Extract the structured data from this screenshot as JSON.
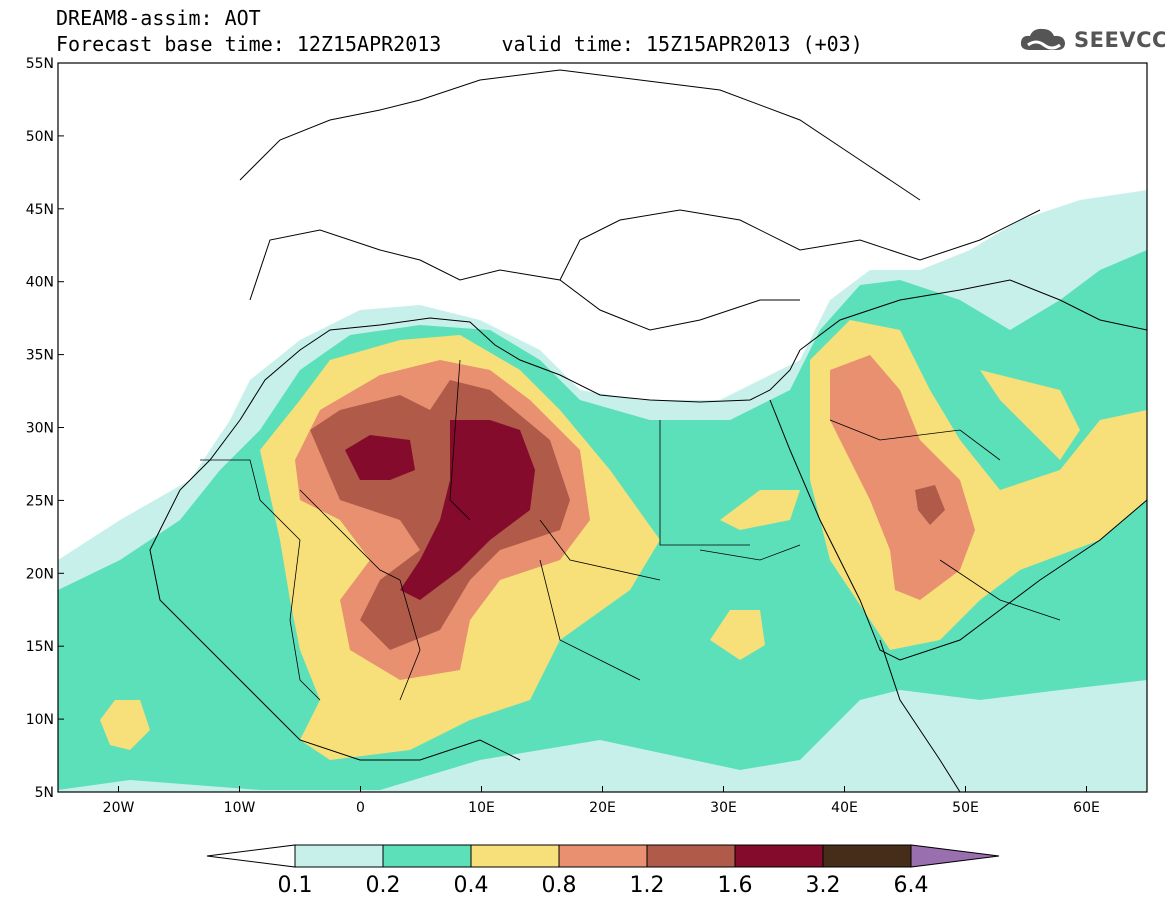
{
  "header": {
    "title": "DREAM8-assim: AOT",
    "subtitle": "Forecast base time: 12Z15APR2013     valid time: 15Z15APR2013 (+03)"
  },
  "brand": {
    "name": "SEEVCCC",
    "icon": "cloud-logo-icon"
  },
  "map": {
    "extent": {
      "lon_min": -25,
      "lon_max": 65,
      "lat_min": 5,
      "lat_max": 55
    },
    "lat_labels": [
      {
        "lat": 55,
        "label": "55N"
      },
      {
        "lat": 50,
        "label": "50N"
      },
      {
        "lat": 45,
        "label": "45N"
      },
      {
        "lat": 40,
        "label": "40N"
      },
      {
        "lat": 35,
        "label": "35N"
      },
      {
        "lat": 30,
        "label": "30N"
      },
      {
        "lat": 25,
        "label": "25N"
      },
      {
        "lat": 20,
        "label": "20N"
      },
      {
        "lat": 15,
        "label": "15N"
      },
      {
        "lat": 10,
        "label": "10N"
      },
      {
        "lat": 5,
        "label": "5N"
      }
    ],
    "lon_labels": [
      {
        "lon": -20,
        "label": "20W"
      },
      {
        "lon": -10,
        "label": "10W"
      },
      {
        "lon": 0,
        "label": "0"
      },
      {
        "lon": 10,
        "label": "10E"
      },
      {
        "lon": 20,
        "label": "20E"
      },
      {
        "lon": 30,
        "label": "30E"
      },
      {
        "lon": 40,
        "label": "40E"
      },
      {
        "lon": 50,
        "label": "50E"
      },
      {
        "lon": 60,
        "label": "60E"
      }
    ]
  },
  "colorbar": {
    "under_color": "#ffffff",
    "over_color": "#9a6fb0",
    "bins": [
      {
        "color": "#c8f0eb"
      },
      {
        "color": "#5ce0b9"
      },
      {
        "color": "#f7e07a"
      },
      {
        "color": "#e89070"
      },
      {
        "color": "#b05a4a"
      },
      {
        "color": "#850b2c"
      },
      {
        "color": "#452d1a"
      }
    ],
    "labels": [
      "0.1",
      "0.2",
      "0.4",
      "0.8",
      "1.2",
      "1.6",
      "3.2",
      "6.4"
    ]
  }
}
